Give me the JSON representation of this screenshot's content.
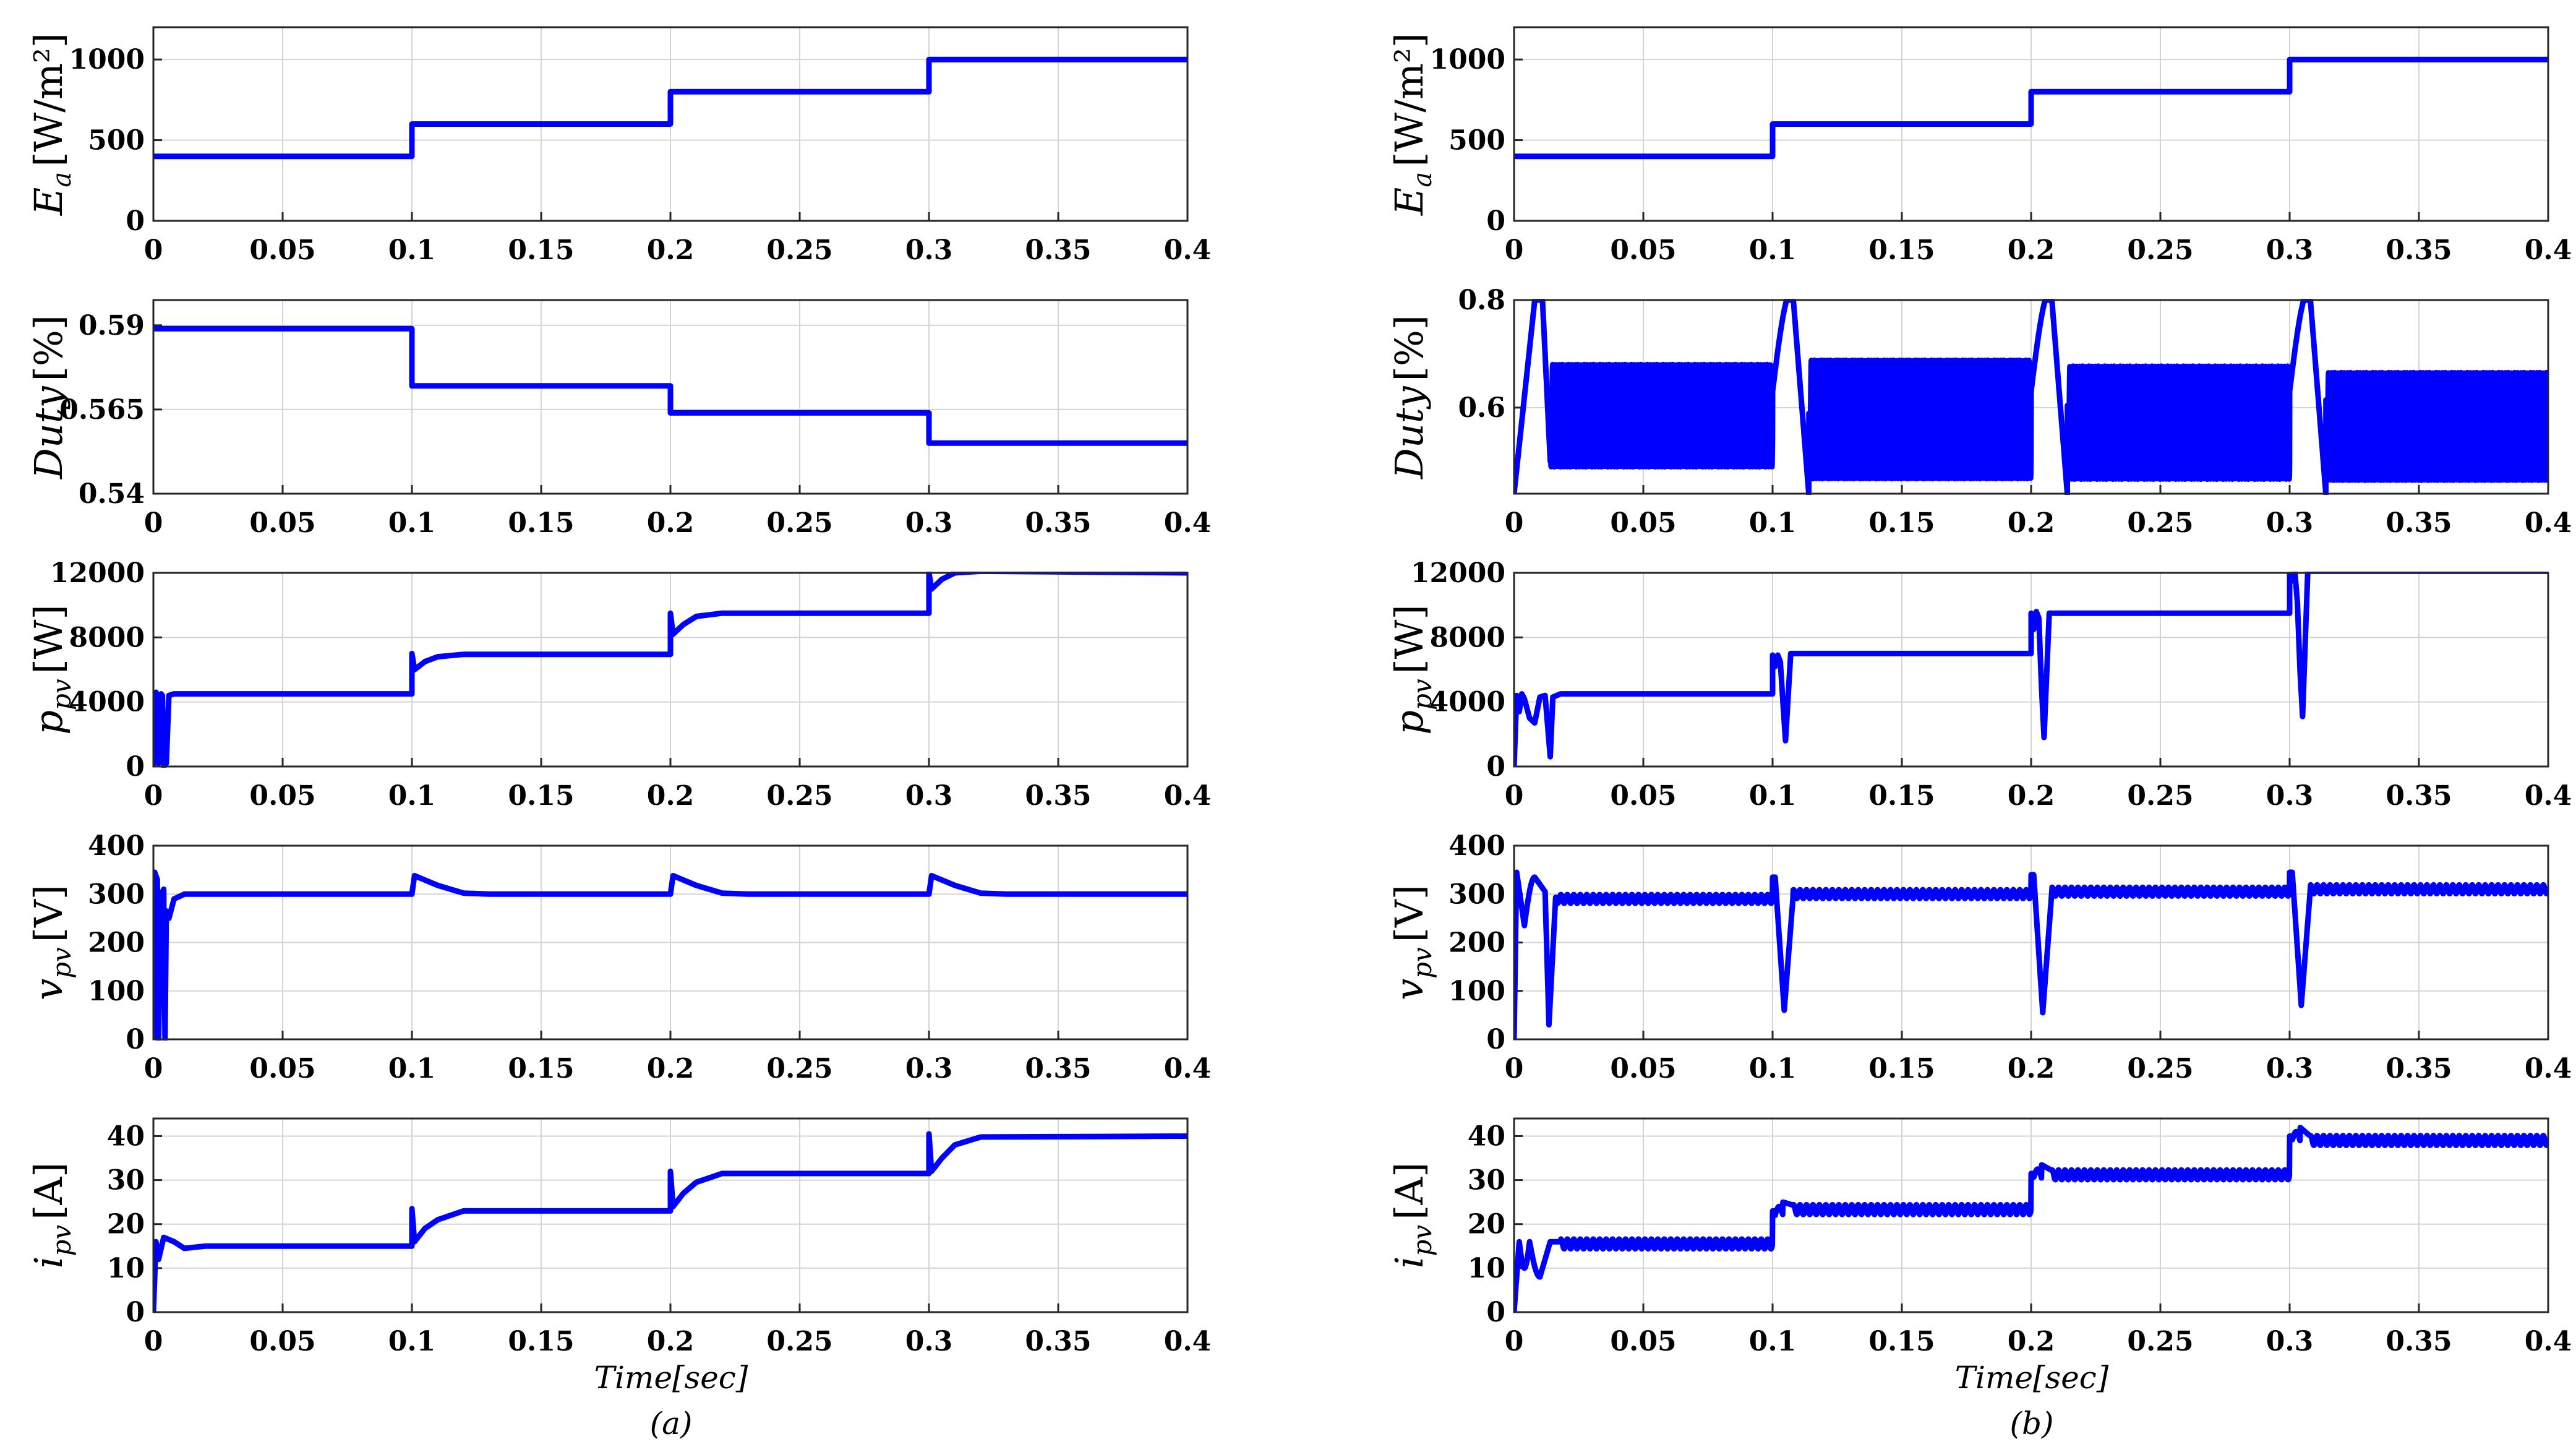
{
  "figure": {
    "line_color": "#0000ff",
    "xlabel": "Time[sec]",
    "captions": [
      "(a)",
      "(b)"
    ]
  },
  "chart_data": [
    {
      "id": "a-irradiance",
      "column": "a",
      "type": "line",
      "ylabel": {
        "main": "E",
        "sub": "a",
        "unit": "[W/m²]"
      },
      "xlim": [
        0,
        0.4
      ],
      "ylim": [
        0,
        1200
      ],
      "xticks": [
        "0",
        "0.05",
        "0.1",
        "0.15",
        "0.2",
        "0.25",
        "0.3",
        "0.35",
        "0.4"
      ],
      "yticks": [
        {
          "v": 0,
          "label": "0"
        },
        {
          "v": 500,
          "label": "500"
        },
        {
          "v": 1000,
          "label": "1000"
        }
      ],
      "x": [
        0,
        0.1,
        0.1,
        0.2,
        0.2,
        0.3,
        0.3,
        0.4
      ],
      "y": [
        400,
        400,
        600,
        600,
        800,
        800,
        1000,
        1000
      ]
    },
    {
      "id": "a-duty",
      "column": "a",
      "type": "line",
      "ylabel": {
        "main": "Duty",
        "sub": "",
        "unit": "[%]"
      },
      "xlim": [
        0,
        0.4
      ],
      "ylim": [
        0.54,
        0.5975
      ],
      "xticks": [
        "0",
        "0.05",
        "0.1",
        "0.15",
        "0.2",
        "0.25",
        "0.3",
        "0.35",
        "0.4"
      ],
      "yticks": [
        {
          "v": 0.54,
          "label": "0.54"
        },
        {
          "v": 0.565,
          "label": "0.565"
        },
        {
          "v": 0.59,
          "label": "0.59"
        }
      ],
      "x": [
        0,
        0.1,
        0.1,
        0.2,
        0.2,
        0.3,
        0.3,
        0.4
      ],
      "y": [
        0.589,
        0.589,
        0.572,
        0.572,
        0.564,
        0.564,
        0.555,
        0.555
      ]
    },
    {
      "id": "a-ppv",
      "column": "a",
      "type": "line",
      "ylabel": {
        "main": "p",
        "sub": "pv",
        "unit": "[W]"
      },
      "xlim": [
        0,
        0.4
      ],
      "ylim": [
        0,
        12000
      ],
      "xticks": [
        "0",
        "0.05",
        "0.1",
        "0.15",
        "0.2",
        "0.25",
        "0.3",
        "0.35",
        "0.4"
      ],
      "yticks": [
        {
          "v": 0,
          "label": "0"
        },
        {
          "v": 4000,
          "label": "4000"
        },
        {
          "v": 8000,
          "label": "8000"
        },
        {
          "v": 12000,
          "label": "12000"
        }
      ],
      "x": [
        0,
        0.001,
        0.0015,
        0.002,
        0.003,
        0.0035,
        0.004,
        0.005,
        0.006,
        0.008,
        0.1,
        0.1,
        0.101,
        0.105,
        0.11,
        0.12,
        0.2,
        0.2,
        0.201,
        0.205,
        0.21,
        0.22,
        0.3,
        0.3,
        0.301,
        0.305,
        0.31,
        0.32,
        0.4
      ],
      "y": [
        0,
        4600,
        4400,
        200,
        4500,
        4400,
        0,
        200,
        4400,
        4500,
        4500,
        7000,
        6000,
        6500,
        6800,
        6950,
        6950,
        9500,
        8200,
        8800,
        9300,
        9500,
        9500,
        12000,
        11000,
        11600,
        12000,
        12100,
        12000
      ]
    },
    {
      "id": "a-vpv",
      "column": "a",
      "type": "line",
      "ylabel": {
        "main": "v",
        "sub": "pv",
        "unit": "[V]"
      },
      "xlim": [
        0,
        0.4
      ],
      "ylim": [
        0,
        400
      ],
      "xticks": [
        "0",
        "0.05",
        "0.1",
        "0.15",
        "0.2",
        "0.25",
        "0.3",
        "0.35",
        "0.4"
      ],
      "yticks": [
        {
          "v": 0,
          "label": "0"
        },
        {
          "v": 100,
          "label": "100"
        },
        {
          "v": 200,
          "label": "200"
        },
        {
          "v": 300,
          "label": "300"
        },
        {
          "v": 400,
          "label": "400"
        }
      ],
      "x": [
        0,
        0.0005,
        0.0015,
        0.002,
        0.003,
        0.004,
        0.0045,
        0.005,
        0.006,
        0.008,
        0.012,
        0.1,
        0.101,
        0.11,
        0.12,
        0.13,
        0.2,
        0.201,
        0.21,
        0.22,
        0.23,
        0.3,
        0.301,
        0.31,
        0.32,
        0.33,
        0.4
      ],
      "y": [
        0,
        345,
        330,
        0,
        300,
        310,
        0,
        265,
        250,
        290,
        300,
        300,
        338,
        318,
        302,
        300,
        300,
        338,
        318,
        302,
        300,
        300,
        338,
        318,
        302,
        300,
        300
      ]
    },
    {
      "id": "a-ipv",
      "column": "a",
      "type": "line",
      "ylabel": {
        "main": "i",
        "sub": "pv",
        "unit": "[A]"
      },
      "xlim": [
        0,
        0.4
      ],
      "ylim": [
        0,
        44
      ],
      "xticks": [
        "0",
        "0.05",
        "0.1",
        "0.15",
        "0.2",
        "0.25",
        "0.3",
        "0.35",
        "0.4"
      ],
      "yticks": [
        {
          "v": 0,
          "label": "0"
        },
        {
          "v": 10,
          "label": "10"
        },
        {
          "v": 20,
          "label": "20"
        },
        {
          "v": 30,
          "label": "30"
        },
        {
          "v": 40,
          "label": "40"
        }
      ],
      "x": [
        0,
        0.001,
        0.002,
        0.004,
        0.008,
        0.012,
        0.02,
        0.1,
        0.1,
        0.101,
        0.105,
        0.11,
        0.12,
        0.2,
        0.2,
        0.201,
        0.205,
        0.21,
        0.22,
        0.3,
        0.3,
        0.301,
        0.305,
        0.31,
        0.32,
        0.4
      ],
      "y": [
        0,
        16,
        12,
        17,
        16,
        14.5,
        15,
        15,
        23.5,
        16,
        19,
        21,
        23,
        23,
        32,
        24,
        27,
        29.5,
        31.5,
        31.5,
        40.5,
        32,
        35,
        38,
        39.8,
        40
      ]
    },
    {
      "id": "b-irradiance",
      "column": "b",
      "type": "line",
      "ylabel": {
        "main": "E",
        "sub": "a",
        "unit": "[W/m²]"
      },
      "xlim": [
        0,
        0.4
      ],
      "ylim": [
        0,
        1200
      ],
      "xticks": [
        "0",
        "0.05",
        "0.1",
        "0.15",
        "0.2",
        "0.25",
        "0.3",
        "0.35",
        "0.4"
      ],
      "yticks": [
        {
          "v": 0,
          "label": "0"
        },
        {
          "v": 500,
          "label": "500"
        },
        {
          "v": 1000,
          "label": "1000"
        }
      ],
      "x": [
        0,
        0.1,
        0.1,
        0.2,
        0.2,
        0.3,
        0.3,
        0.4
      ],
      "y": [
        400,
        400,
        600,
        600,
        800,
        800,
        1000,
        1000
      ]
    },
    {
      "id": "b-duty",
      "column": "b",
      "type": "line",
      "ylabel": {
        "main": "Duty",
        "sub": "",
        "unit": "[%]"
      },
      "xlim": [
        0,
        0.4
      ],
      "ylim": [
        0.44,
        0.8
      ],
      "xticks": [
        "0",
        "0.05",
        "0.1",
        "0.15",
        "0.2",
        "0.25",
        "0.3",
        "0.35",
        "0.4"
      ],
      "yticks": [
        {
          "v": 0.6,
          "label": "0.6"
        },
        {
          "v": 0.8,
          "label": "0.8"
        }
      ],
      "gen": "duty_osc"
    },
    {
      "id": "b-ppv",
      "column": "b",
      "type": "line",
      "ylabel": {
        "main": "p",
        "sub": "pv",
        "unit": "[W]"
      },
      "xlim": [
        0,
        0.4
      ],
      "ylim": [
        0,
        12000
      ],
      "xticks": [
        "0",
        "0.05",
        "0.1",
        "0.15",
        "0.2",
        "0.25",
        "0.3",
        "0.35",
        "0.4"
      ],
      "yticks": [
        {
          "v": 0,
          "label": "0"
        },
        {
          "v": 4000,
          "label": "4000"
        },
        {
          "v": 8000,
          "label": "8000"
        },
        {
          "v": 12000,
          "label": "12000"
        }
      ],
      "x": [
        0,
        0.001,
        0.002,
        0.003,
        0.004,
        0.006,
        0.008,
        0.01,
        0.012,
        0.014,
        0.015,
        0.018,
        0.1,
        0.1,
        0.101,
        0.102,
        0.103,
        0.104,
        0.105,
        0.107,
        0.2,
        0.2,
        0.201,
        0.202,
        0.203,
        0.204,
        0.205,
        0.207,
        0.3,
        0.3,
        0.301,
        0.302,
        0.303,
        0.304,
        0.305,
        0.307,
        0.4
      ],
      "y": [
        0,
        4400,
        3400,
        4500,
        4200,
        3000,
        2700,
        4300,
        4400,
        600,
        4300,
        4500,
        4500,
        6900,
        6200,
        6900,
        6500,
        4000,
        1600,
        7000,
        7000,
        9500,
        8500,
        9600,
        9200,
        5000,
        1800,
        9500,
        9500,
        11900,
        11500,
        12100,
        10200,
        6000,
        3100,
        12100,
        12100
      ]
    },
    {
      "id": "b-vpv",
      "column": "b",
      "type": "line",
      "ylabel": {
        "main": "v",
        "sub": "pv",
        "unit": "[V]"
      },
      "xlim": [
        0,
        0.4
      ],
      "ylim": [
        0,
        400
      ],
      "xticks": [
        "0",
        "0.05",
        "0.1",
        "0.15",
        "0.2",
        "0.25",
        "0.3",
        "0.35",
        "0.4"
      ],
      "yticks": [
        {
          "v": 0,
          "label": "0"
        },
        {
          "v": 100,
          "label": "100"
        },
        {
          "v": 200,
          "label": "200"
        },
        {
          "v": 300,
          "label": "300"
        },
        {
          "v": 400,
          "label": "400"
        }
      ],
      "gen": "vpv_osc"
    },
    {
      "id": "b-ipv",
      "column": "b",
      "type": "line",
      "ylabel": {
        "main": "i",
        "sub": "pv",
        "unit": "[A]"
      },
      "xlim": [
        0,
        0.4
      ],
      "ylim": [
        0,
        44
      ],
      "xticks": [
        "0",
        "0.05",
        "0.1",
        "0.15",
        "0.2",
        "0.25",
        "0.3",
        "0.35",
        "0.4"
      ],
      "yticks": [
        {
          "v": 0,
          "label": "0"
        },
        {
          "v": 10,
          "label": "10"
        },
        {
          "v": 20,
          "label": "20"
        },
        {
          "v": 30,
          "label": "30"
        },
        {
          "v": 40,
          "label": "40"
        }
      ],
      "gen": "ipv_osc"
    }
  ]
}
